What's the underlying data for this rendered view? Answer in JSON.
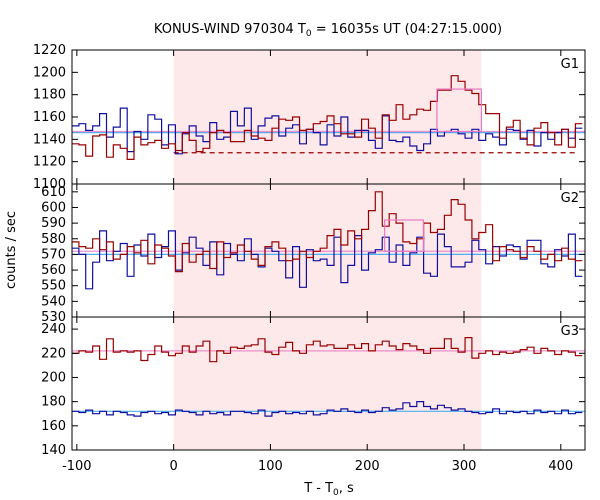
{
  "chart_data": {
    "type": "line",
    "title": {
      "prefix": "KONUS-WIND 970304 T",
      "sub": "0",
      "suffix": " = 16035s UT (04:27:15.000)"
    },
    "xlabel": {
      "prefix": "T - T",
      "sub": "0",
      "suffix": ", s"
    },
    "ylabel": "counts / sec",
    "xlim": [
      -105,
      425
    ],
    "xticks": [
      -100,
      0,
      100,
      200,
      300,
      400
    ],
    "shaded_interval": {
      "x": [
        0,
        318
      ],
      "color": "#fde8ea"
    },
    "grid": false,
    "colors": {
      "red_series": "#990000",
      "blue_series": "#1010a0",
      "fit_line": "#4eb0ee",
      "box": "#e879c4"
    },
    "panels": [
      {
        "label": "G1",
        "ylim": [
          1100,
          1220
        ],
        "yticks": [
          1100,
          1120,
          1140,
          1160,
          1180,
          1200,
          1220
        ],
        "x": [
          -105,
          -97.9,
          -90.8,
          -83.6,
          -76.5,
          -69.4,
          -62.3,
          -55.1,
          -48,
          -40.9,
          -33.8,
          -26.6,
          -19.5,
          -12.4,
          -5.3,
          1.9,
          9,
          16.1,
          23.2,
          30.3,
          37.4,
          44.6,
          51.7,
          58.8,
          65.9,
          73.1,
          80.2,
          87.3,
          94.4,
          101.6,
          108.7,
          115.8,
          122.9,
          130.1,
          137.2,
          144.3,
          151.4,
          158.6,
          165.7,
          172.8,
          179.9,
          187.1,
          194.2,
          201.3,
          208.4,
          215.6,
          222.7,
          229.8,
          236.9,
          244.1,
          251.2,
          258.3,
          265.4,
          272.6,
          279.7,
          286.8,
          293.9,
          301.1,
          308.2,
          315.3,
          322.4,
          329.6,
          336.7,
          343.8,
          350.9,
          358.1,
          365.2,
          372.3,
          379.4,
          386.6,
          393.7,
          400.8,
          407.9,
          415.1
        ],
        "red": [
          1136,
          1135,
          1125,
          1143,
          1144,
          1124,
          1135,
          1132,
          1122,
          1142,
          1135,
          1137,
          1139,
          1132,
          1136,
          1130,
          1146,
          1139,
          1129,
          1132,
          1146,
          1148,
          1146,
          1138,
          1138,
          1148,
          1143,
          1141,
          1139,
          1150,
          1158,
          1157,
          1160,
          1148,
          1149,
          1154,
          1156,
          1161,
          1154,
          1145,
          1145,
          1142,
          1158,
          1150,
          1141,
          1162,
          1157,
          1171,
          1158,
          1162,
          1167,
          1166,
          1174,
          1184,
          1184,
          1197,
          1192,
          1184,
          1181,
          1171,
          1163,
          1163,
          1141,
          1151,
          1157,
          1141,
          1135,
          1150,
          1155,
          1146,
          1135,
          1149,
          1133,
          1154
        ],
        "blue": [
          1152,
          1154,
          1148,
          1152,
          1163,
          1142,
          1151,
          1168,
          1129,
          1147,
          1140,
          1162,
          1158,
          1135,
          1153,
          1127,
          1145,
          1152,
          1143,
          1138,
          1155,
          1140,
          1142,
          1165,
          1152,
          1168,
          1140,
          1152,
          1159,
          1161,
          1143,
          1150,
          1153,
          1136,
          1149,
          1146,
          1135,
          1153,
          1143,
          1160,
          1142,
          1148,
          1148,
          1139,
          1132,
          1161,
          1139,
          1138,
          1142,
          1134,
          1130,
          1136,
          1149,
          1143,
          1147,
          1149,
          1145,
          1141,
          1149,
          1139,
          1145,
          1142,
          1135,
          1149,
          1148,
          1140,
          1148,
          1134,
          1146,
          1140,
          1146,
          1149,
          1141,
          1150
        ],
        "blue_fit": {
          "x": [
            -105,
            425
          ],
          "y": [
            1146,
            1146
          ]
        },
        "red_fit": {
          "x": [
            -105,
            425
          ],
          "y": [
            1147,
            1147
          ]
        },
        "red_bg_dashed": {
          "x": [
            0,
            418
          ],
          "y": [
            1128,
            1128
          ]
        },
        "box": {
          "x": [
            272,
            318
          ],
          "y": [
            1147,
            1185
          ]
        }
      },
      {
        "label": "G2",
        "ylim": [
          530,
          615
        ],
        "yticks": [
          530,
          540,
          550,
          560,
          570,
          580,
          590,
          600,
          610
        ],
        "x": [
          -105,
          -97.9,
          -90.8,
          -83.6,
          -76.5,
          -69.4,
          -62.3,
          -55.1,
          -48,
          -40.9,
          -33.8,
          -26.6,
          -19.5,
          -12.4,
          -5.3,
          1.9,
          9,
          16.1,
          23.2,
          30.3,
          37.4,
          44.6,
          51.7,
          58.8,
          65.9,
          73.1,
          80.2,
          87.3,
          94.4,
          101.6,
          108.7,
          115.8,
          122.9,
          130.1,
          137.2,
          144.3,
          151.4,
          158.6,
          165.7,
          172.8,
          179.9,
          187.1,
          194.2,
          201.3,
          208.4,
          215.6,
          222.7,
          229.8,
          236.9,
          244.1,
          251.2,
          258.3,
          265.4,
          272.6,
          279.7,
          286.8,
          293.9,
          301.1,
          308.2,
          315.3,
          322.4,
          329.6,
          336.7,
          343.8,
          350.9,
          358.1,
          365.2,
          372.3,
          379.4,
          386.6,
          393.7,
          400.8,
          407.9,
          415.1
        ],
        "red": [
          578,
          575,
          574,
          580,
          573,
          578,
          567,
          570,
          575,
          571,
          579,
          564,
          576,
          574,
          569,
          559,
          577,
          565,
          570,
          572,
          561,
          578,
          568,
          571,
          576,
          572,
          567,
          563,
          575,
          578,
          574,
          566,
          567,
          572,
          568,
          572,
          574,
          582,
          586,
          576,
          585,
          580,
          586,
          598,
          610,
          588,
          596,
          590,
          578,
          577,
          580,
          590,
          584,
          586,
          595,
          605,
          602,
          592,
          580,
          584,
          589,
          566,
          575,
          573,
          572,
          568,
          575,
          572,
          567,
          570,
          566,
          574,
          567,
          566
        ],
        "blue": [
          574,
          570,
          548,
          565,
          585,
          566,
          572,
          577,
          556,
          576,
          569,
          583,
          568,
          575,
          585,
          560,
          571,
          581,
          574,
          563,
          578,
          557,
          577,
          570,
          566,
          580,
          570,
          562,
          574,
          572,
          566,
          555,
          575,
          549,
          573,
          566,
          567,
          563,
          581,
          552,
          563,
          582,
          560,
          571,
          573,
          581,
          565,
          576,
          563,
          571,
          581,
          558,
          556,
          583,
          575,
          562,
          562,
          565,
          579,
          573,
          564,
          575,
          569,
          576,
          575,
          567,
          579,
          579,
          564,
          562,
          573,
          569,
          583,
          556
        ],
        "blue_fit": {
          "x": [
            -105,
            425
          ],
          "y": [
            570,
            570
          ]
        },
        "red_fit": {
          "x": [
            -105,
            425
          ],
          "y": [
            572,
            572
          ]
        },
        "box": {
          "x": [
            218,
            258
          ],
          "y": [
            572,
            592
          ]
        }
      },
      {
        "label": "G3",
        "ylim": [
          140,
          250
        ],
        "yticks": [
          140,
          160,
          180,
          200,
          220,
          240
        ],
        "x": [
          -105,
          -97.9,
          -90.8,
          -83.6,
          -76.5,
          -69.4,
          -62.3,
          -55.1,
          -48,
          -40.9,
          -33.8,
          -26.6,
          -19.5,
          -12.4,
          -5.3,
          1.9,
          9,
          16.1,
          23.2,
          30.3,
          37.4,
          44.6,
          51.7,
          58.8,
          65.9,
          73.1,
          80.2,
          87.3,
          94.4,
          101.6,
          108.7,
          115.8,
          122.9,
          130.1,
          137.2,
          144.3,
          151.4,
          158.6,
          165.7,
          172.8,
          179.9,
          187.1,
          194.2,
          201.3,
          208.4,
          215.6,
          222.7,
          229.8,
          236.9,
          244.1,
          251.2,
          258.3,
          265.4,
          272.6,
          279.7,
          286.8,
          293.9,
          301.1,
          308.2,
          315.3,
          322.4,
          329.6,
          336.7,
          343.8,
          350.9,
          358.1,
          365.2,
          372.3,
          379.4,
          386.6,
          393.7,
          400.8,
          407.9,
          415.1
        ],
        "red": [
          220,
          222,
          221,
          226,
          215,
          232,
          221,
          222,
          221,
          222,
          214,
          219,
          226,
          221,
          218,
          220,
          226,
          221,
          226,
          230,
          213,
          222,
          220,
          225,
          224,
          226,
          227,
          232,
          221,
          219,
          225,
          229,
          222,
          220,
          227,
          230,
          226,
          227,
          224,
          224,
          227,
          224,
          228,
          222,
          227,
          230,
          226,
          223,
          228,
          226,
          223,
          220,
          224,
          224,
          232,
          224,
          221,
          233,
          216,
          220,
          222,
          219,
          221,
          220,
          221,
          223,
          225,
          220,
          224,
          222,
          219,
          222,
          221,
          218
        ],
        "blue": [
          172,
          171,
          173,
          170,
          172,
          169,
          172,
          171,
          169,
          168,
          171,
          172,
          170,
          171,
          169,
          173,
          172,
          171,
          169,
          172,
          170,
          171,
          169,
          172,
          172,
          171,
          170,
          173,
          168,
          171,
          172,
          170,
          171,
          170,
          172,
          169,
          170,
          173,
          172,
          174,
          172,
          171,
          173,
          171,
          172,
          175,
          173,
          174,
          179,
          176,
          180,
          176,
          174,
          177,
          175,
          173,
          174,
          172,
          171,
          170,
          171,
          174,
          170,
          172,
          171,
          172,
          170,
          173,
          171,
          172,
          170,
          173,
          170,
          171
        ],
        "blue_fit": {
          "x": [
            -105,
            425
          ],
          "y": [
            172,
            172
          ]
        },
        "red_fit": {
          "x": [
            -105,
            425
          ],
          "y": [
            222,
            222
          ]
        }
      }
    ]
  }
}
